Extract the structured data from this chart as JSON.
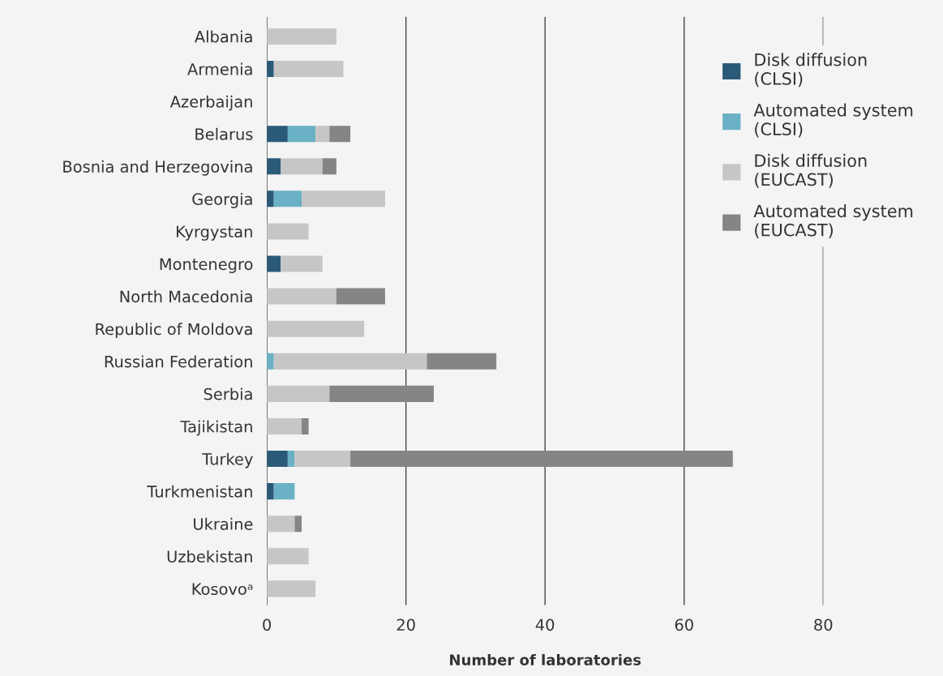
{
  "chart_data": {
    "type": "bar",
    "orientation": "horizontal",
    "stacked": true,
    "xlabel": "Number of laboratories",
    "categories": [
      "Albania",
      "Armenia",
      "Azerbaijan",
      "Belarus",
      "Bosnia and Herzegovina",
      "Georgia",
      "Kyrgystan",
      "Montenegro",
      "North Macedonia",
      "Republic of Moldova",
      "Russian Federation",
      "Serbia",
      "Tajikistan",
      "Turkey",
      "Turkmenistan",
      "Ukraine",
      "Uzbekistan",
      "Kosovoᵃ"
    ],
    "series": [
      {
        "name": "Disk diffusion\n(CLSI)",
        "color": "#2b5a78",
        "values": [
          0,
          1,
          0,
          3,
          2,
          1,
          0,
          2,
          0,
          0,
          0,
          0,
          0,
          3,
          1,
          0,
          0,
          0
        ]
      },
      {
        "name": "Automated system\n(CLSI)",
        "color": "#6ab1c5",
        "values": [
          0,
          0,
          0,
          4,
          0,
          4,
          0,
          0,
          0,
          0,
          1,
          0,
          0,
          1,
          3,
          0,
          0,
          0
        ]
      },
      {
        "name": "Disk diffusion\n(EUCAST)",
        "color": "#c6c6c6",
        "values": [
          10,
          10,
          0,
          2,
          6,
          12,
          6,
          6,
          10,
          14,
          22,
          9,
          5,
          8,
          0,
          4,
          6,
          7
        ]
      },
      {
        "name": "Automated system\n(EUCAST)",
        "color": "#858585",
        "values": [
          0,
          0,
          0,
          3,
          2,
          0,
          0,
          0,
          7,
          0,
          10,
          15,
          1,
          55,
          0,
          1,
          0,
          0
        ]
      }
    ],
    "xlim": [
      0,
      80
    ],
    "xticks": [
      0,
      20,
      40,
      60,
      80
    ],
    "grid": "x",
    "legend": "right"
  }
}
